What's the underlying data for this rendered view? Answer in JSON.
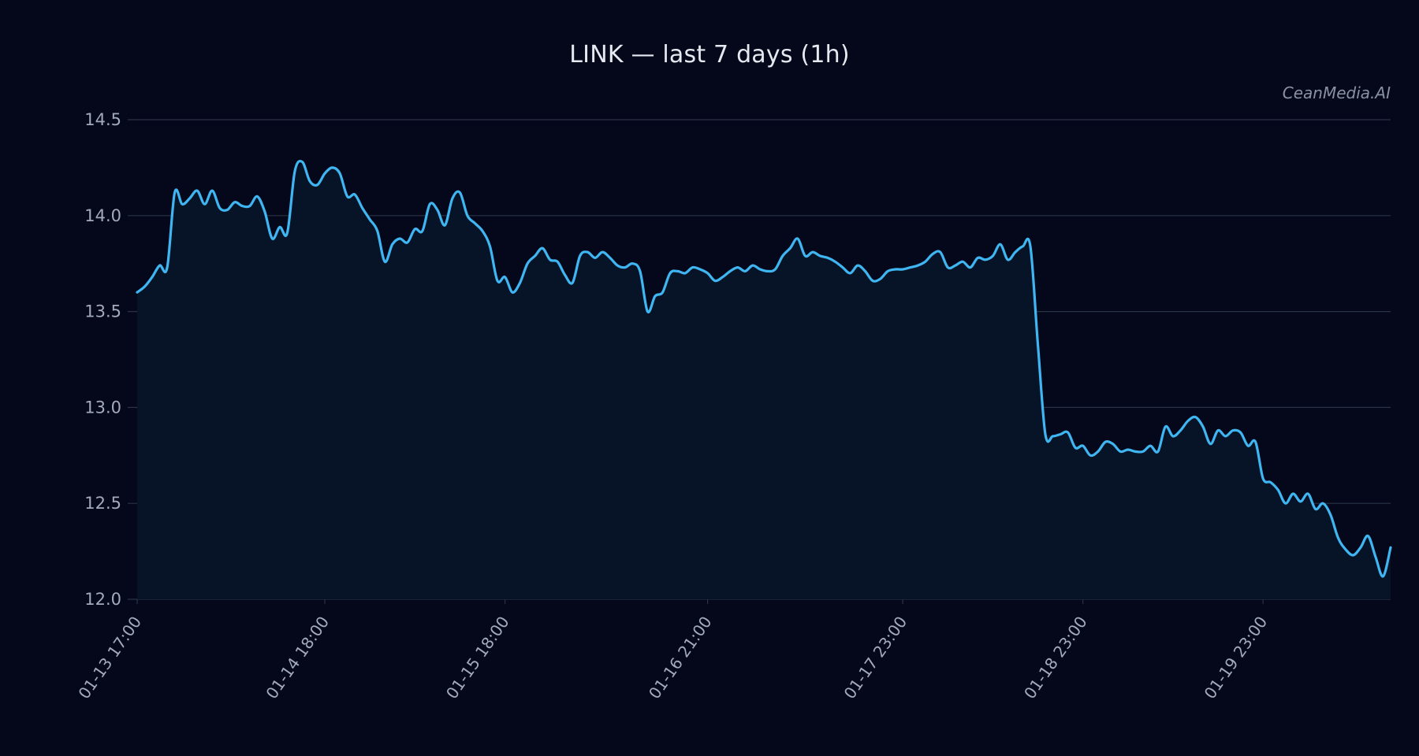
{
  "title": "LINK — last 7 days (1h)",
  "watermark": "CeanMedia.AI",
  "colors": {
    "background": "#04081a",
    "line": "#3fb6f2",
    "area": "#071428",
    "grid": "#2a3346",
    "text": "#a3aabb"
  },
  "chart_data": {
    "type": "area",
    "title": "LINK — last 7 days (1h)",
    "xlabel": "",
    "ylabel": "",
    "ylim": [
      12.0,
      14.5
    ],
    "yticks": [
      12.0,
      12.5,
      13.0,
      13.5,
      14.0,
      14.5
    ],
    "yticklabels": [
      "12.0",
      "12.5",
      "13.0",
      "13.5",
      "14.0",
      "14.5"
    ],
    "xtick_labels": [
      "01-13 17:00",
      "01-14 18:00",
      "01-15 18:00",
      "01-16 21:00",
      "01-17 23:00",
      "01-18 23:00",
      "01-19 23:00"
    ],
    "x_start": "01-13 17:00",
    "x_end": "01-20 17:00",
    "interval": "1h",
    "grid": true,
    "legend": "none",
    "series": [
      {
        "values": [
          13.6,
          13.63,
          13.68,
          13.74,
          13.73,
          14.12,
          14.06,
          14.09,
          14.13,
          14.06,
          14.13,
          14.04,
          14.03,
          14.07,
          14.05,
          14.05,
          14.1,
          14.02,
          13.88,
          13.94,
          13.91,
          14.23,
          14.28,
          14.18,
          14.16,
          14.22,
          14.25,
          14.22,
          14.1,
          14.11,
          14.04,
          13.98,
          13.92,
          13.76,
          13.85,
          13.88,
          13.86,
          13.93,
          13.92,
          14.06,
          14.03,
          13.95,
          14.09,
          14.12,
          14.0,
          13.96,
          13.92,
          13.84,
          13.66,
          13.68,
          13.6,
          13.65,
          13.75,
          13.79,
          13.83,
          13.77,
          13.76,
          13.69,
          13.65,
          13.79,
          13.81,
          13.78,
          13.81,
          13.78,
          13.74,
          13.73,
          13.75,
          13.71,
          13.5,
          13.58,
          13.6,
          13.7,
          13.71,
          13.7,
          13.73,
          13.72,
          13.7,
          13.66,
          13.68,
          13.71,
          13.73,
          13.71,
          13.74,
          13.72,
          13.71,
          13.72,
          13.79,
          13.83,
          13.88,
          13.79,
          13.81,
          13.79,
          13.78,
          13.76,
          13.73,
          13.7,
          13.74,
          13.71,
          13.66,
          13.67,
          13.71,
          13.72,
          13.72,
          13.73,
          13.74,
          13.76,
          13.8,
          13.81,
          13.73,
          13.74,
          13.76,
          13.73,
          13.78,
          13.77,
          13.79,
          13.85,
          13.77,
          13.81,
          13.84,
          13.84,
          13.33,
          12.86,
          12.85,
          12.86,
          12.87,
          12.79,
          12.8,
          12.75,
          12.77,
          12.82,
          12.81,
          12.77,
          12.78,
          12.77,
          12.77,
          12.8,
          12.77,
          12.9,
          12.85,
          12.88,
          12.93,
          12.95,
          12.9,
          12.81,
          12.88,
          12.85,
          12.88,
          12.87,
          12.8,
          12.82,
          12.63,
          12.61,
          12.57,
          12.5,
          12.55,
          12.51,
          12.55,
          12.47,
          12.5,
          12.44,
          12.32,
          12.26,
          12.23,
          12.27,
          12.33,
          12.22,
          12.12,
          12.27
        ]
      }
    ]
  }
}
